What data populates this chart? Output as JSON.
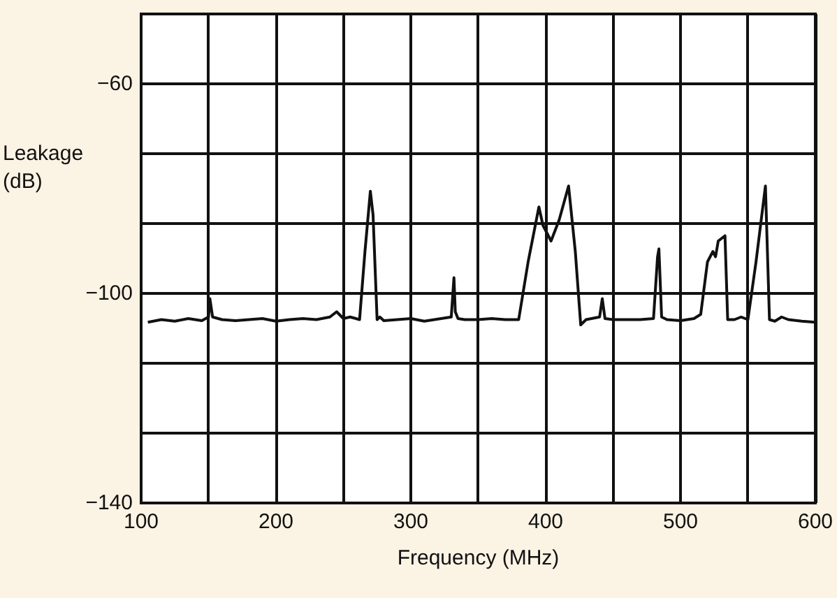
{
  "chart_data": {
    "type": "line",
    "xlabel": "Frequency (MHz)",
    "ylabel": "Leakage\n(dB)",
    "x": [
      105,
      115,
      125,
      135,
      145,
      150,
      151,
      153,
      160,
      170,
      180,
      190,
      200,
      210,
      220,
      230,
      240,
      245,
      250,
      255,
      262,
      266,
      270,
      272,
      275,
      277,
      280,
      290,
      300,
      310,
      320,
      330,
      332,
      333,
      335,
      340,
      350,
      360,
      370,
      380,
      387,
      395,
      398,
      404,
      410,
      417,
      422,
      426,
      430,
      440,
      442,
      444,
      450,
      460,
      470,
      480,
      483,
      484,
      486,
      490,
      500,
      510,
      515,
      520,
      524,
      526,
      528,
      533,
      535,
      540,
      545,
      550,
      556,
      563,
      566,
      570,
      575,
      580,
      590,
      600
    ],
    "series": [
      {
        "color": "#111111",
        "values": [
          -105.5,
          -105,
          -105.3,
          -104.8,
          -105.2,
          -104.5,
          -101,
          -104.5,
          -105,
          -105.2,
          -105,
          -104.8,
          -105.3,
          -105,
          -104.8,
          -105,
          -104.5,
          -103.5,
          -104.8,
          -104.5,
          -105,
          -92,
          -80.5,
          -85,
          -105,
          -104.5,
          -105.2,
          -105,
          -104.8,
          -105.3,
          -104.9,
          -104.5,
          -97,
          -103.5,
          -104.8,
          -105,
          -105,
          -104.8,
          -105,
          -105,
          -94,
          -83.5,
          -87,
          -90,
          -86,
          -79.5,
          -92,
          -106,
          -105,
          -104.5,
          -101,
          -104.8,
          -105,
          -105,
          -105,
          -104.8,
          -93,
          -91.5,
          -104.5,
          -105,
          -105.2,
          -104.8,
          -104,
          -94,
          -92,
          -93,
          -90,
          -89,
          -105,
          -105,
          -104.5,
          -105,
          -94,
          -79.5,
          -105,
          -105.3,
          -104.5,
          -105,
          -105.3,
          -105.5
        ]
      }
    ],
    "xlim": [
      100,
      600
    ],
    "xticks": [
      100,
      {
        "value": 150,
        "label": null
      },
      200,
      {
        "value": 250,
        "label": null
      },
      300,
      {
        "value": 350,
        "label": null
      },
      400,
      {
        "value": 450,
        "label": null
      },
      500,
      {
        "value": 550,
        "label": null
      },
      600
    ],
    "ylim": [
      -140,
      -46.67
    ],
    "yticks": [
      -140,
      {
        "value": -126.67,
        "label": null
      },
      {
        "value": -113.33,
        "label": null
      },
      -100,
      {
        "value": -86.67,
        "label": null
      },
      {
        "value": -73.33,
        "label": null
      },
      -60,
      {
        "value": -46.67,
        "label": null
      }
    ],
    "grid": true,
    "marker": "none",
    "line_style": "solid"
  }
}
